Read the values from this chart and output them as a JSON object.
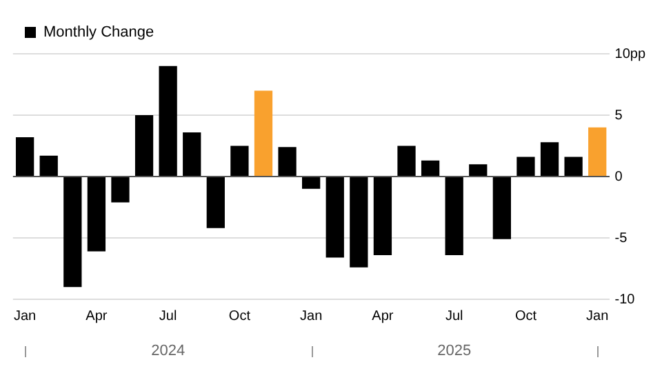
{
  "chart_data": {
    "type": "bar",
    "categories": [
      "Jan",
      null,
      null,
      "Apr",
      null,
      null,
      "Jul",
      null,
      null,
      "Oct",
      null,
      null,
      "Jan",
      null,
      null,
      "Apr",
      null,
      null,
      "Jul",
      null,
      null,
      "Oct",
      null,
      null,
      "Jan"
    ],
    "series": [
      {
        "name": "Monthly Change",
        "color": "#000000",
        "colors": [
          "#000000",
          "#000000",
          "#000000",
          "#000000",
          "#000000",
          "#000000",
          "#000000",
          "#000000",
          "#000000",
          "#000000",
          "#f9a12e",
          "#000000",
          "#000000",
          "#000000",
          "#000000",
          "#000000",
          "#000000",
          "#000000",
          "#000000",
          "#000000",
          "#000000",
          "#000000",
          "#000000",
          "#000000",
          "#f9a12e"
        ],
        "values": [
          3.2,
          1.7,
          -9.0,
          -6.1,
          -2.1,
          5.0,
          9.0,
          3.6,
          -4.2,
          2.5,
          7.0,
          2.4,
          -1.0,
          -6.6,
          -7.4,
          -6.4,
          2.5,
          1.3,
          -6.4,
          1.0,
          -5.1,
          1.6,
          2.8,
          1.6,
          4.0
        ]
      }
    ],
    "ylim": [
      -10,
      10
    ],
    "yticks": [
      {
        "value": 10,
        "label": "10pp"
      },
      5,
      0,
      -5,
      -10
    ],
    "grid": "y",
    "legend": "top left",
    "annotations": [
      "2024",
      "2025"
    ]
  }
}
